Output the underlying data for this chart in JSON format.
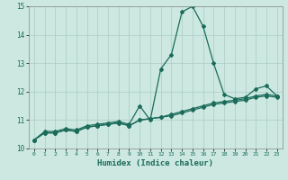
{
  "xlabel": "Humidex (Indice chaleur)",
  "x_values": [
    0,
    1,
    2,
    3,
    4,
    5,
    6,
    7,
    8,
    9,
    10,
    11,
    12,
    13,
    14,
    15,
    16,
    17,
    18,
    19,
    20,
    21,
    22,
    23
  ],
  "line1": [
    10.3,
    10.6,
    10.6,
    10.7,
    10.65,
    10.8,
    10.85,
    10.9,
    10.95,
    10.85,
    11.5,
    11.0,
    12.8,
    13.3,
    14.8,
    15.0,
    14.3,
    13.0,
    11.9,
    11.75,
    11.8,
    12.1,
    12.2,
    11.85
  ],
  "line2": [
    10.3,
    10.55,
    10.55,
    10.65,
    10.6,
    10.75,
    10.8,
    10.85,
    10.9,
    10.8,
    11.0,
    11.05,
    11.1,
    11.2,
    11.3,
    11.4,
    11.5,
    11.6,
    11.65,
    11.7,
    11.75,
    11.85,
    11.9,
    11.85
  ],
  "line3": [
    10.3,
    10.55,
    10.55,
    10.65,
    10.6,
    10.75,
    10.8,
    10.85,
    10.9,
    10.8,
    11.0,
    11.05,
    11.1,
    11.15,
    11.25,
    11.35,
    11.45,
    11.55,
    11.6,
    11.65,
    11.7,
    11.8,
    11.85,
    11.8
  ],
  "ylim": [
    10,
    15
  ],
  "xlim": [
    -0.5,
    23.5
  ],
  "yticks": [
    10,
    11,
    12,
    13,
    14,
    15
  ],
  "xticks": [
    0,
    1,
    2,
    3,
    4,
    5,
    6,
    7,
    8,
    9,
    10,
    11,
    12,
    13,
    14,
    15,
    16,
    17,
    18,
    19,
    20,
    21,
    22,
    23
  ],
  "line_color": "#1a6b5a",
  "bg_color": "#cce8e0",
  "grid_color": "#aaccc4"
}
